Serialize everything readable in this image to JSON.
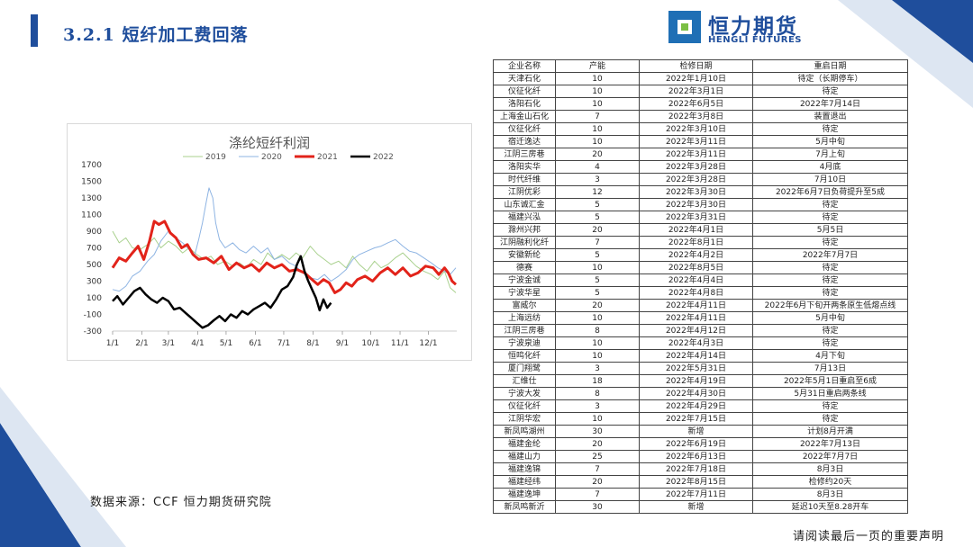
{
  "header": {
    "title": "3.2.1 短纤加工费回落"
  },
  "logo": {
    "name_cn": "恒力期货",
    "name_en": "HENGLI FUTURES"
  },
  "colors": {
    "brand_blue": "#1f4e9c",
    "logo_blue": "#1f6fb5",
    "logo_green": "#7bbf44",
    "deco_light": "#dde6f2"
  },
  "source": "数据来源：CCF 恒力期货研究院",
  "footer": "请阅读最后一页的重要声明",
  "chart_data": {
    "type": "line",
    "title": "涤纶短纤利润",
    "legend_position": "top",
    "grid": false,
    "x_tick_labels": [
      "1/1",
      "2/1",
      "3/1",
      "4/1",
      "5/1",
      "6/1",
      "7/1",
      "8/1",
      "9/1",
      "10/1",
      "11/1",
      "12/1"
    ],
    "y_ticks": [
      1700,
      1500,
      1300,
      1100,
      900,
      700,
      500,
      300,
      100,
      -100,
      -300
    ],
    "ylim": [
      -300,
      1700
    ],
    "series": [
      {
        "name": "2019",
        "color": "#a9d18e",
        "width": 1,
        "points": [
          [
            1,
            900
          ],
          [
            8,
            760
          ],
          [
            15,
            820
          ],
          [
            22,
            700
          ],
          [
            30,
            680
          ],
          [
            38,
            740
          ],
          [
            45,
            820
          ],
          [
            52,
            700
          ],
          [
            60,
            780
          ],
          [
            68,
            720
          ],
          [
            75,
            640
          ],
          [
            82,
            700
          ],
          [
            90,
            620
          ],
          [
            98,
            560
          ],
          [
            105,
            600
          ],
          [
            112,
            500
          ],
          [
            120,
            540
          ],
          [
            128,
            480
          ],
          [
            135,
            520
          ],
          [
            142,
            460
          ],
          [
            150,
            560
          ],
          [
            158,
            500
          ],
          [
            165,
            640
          ],
          [
            172,
            560
          ],
          [
            180,
            620
          ],
          [
            188,
            560
          ],
          [
            195,
            640
          ],
          [
            202,
            580
          ],
          [
            210,
            720
          ],
          [
            218,
            620
          ],
          [
            225,
            560
          ],
          [
            232,
            500
          ],
          [
            240,
            540
          ],
          [
            248,
            460
          ],
          [
            255,
            600
          ],
          [
            262,
            500
          ],
          [
            270,
            420
          ],
          [
            278,
            540
          ],
          [
            285,
            460
          ],
          [
            292,
            500
          ],
          [
            300,
            580
          ],
          [
            308,
            640
          ],
          [
            315,
            560
          ],
          [
            322,
            480
          ],
          [
            330,
            420
          ],
          [
            338,
            380
          ],
          [
            345,
            320
          ],
          [
            352,
            420
          ],
          [
            358,
            220
          ],
          [
            364,
            160
          ]
        ]
      },
      {
        "name": "2020",
        "color": "#8eb4e3",
        "width": 1,
        "points": [
          [
            1,
            200
          ],
          [
            8,
            180
          ],
          [
            15,
            240
          ],
          [
            22,
            360
          ],
          [
            30,
            420
          ],
          [
            38,
            540
          ],
          [
            45,
            620
          ],
          [
            52,
            780
          ],
          [
            60,
            900
          ],
          [
            68,
            820
          ],
          [
            75,
            760
          ],
          [
            82,
            680
          ],
          [
            88,
            620
          ],
          [
            92,
            800
          ],
          [
            96,
            1000
          ],
          [
            100,
            1250
          ],
          [
            103,
            1420
          ],
          [
            107,
            1300
          ],
          [
            110,
            1000
          ],
          [
            114,
            800
          ],
          [
            120,
            700
          ],
          [
            128,
            760
          ],
          [
            135,
            680
          ],
          [
            142,
            640
          ],
          [
            150,
            720
          ],
          [
            158,
            640
          ],
          [
            165,
            700
          ],
          [
            172,
            560
          ],
          [
            180,
            600
          ],
          [
            188,
            520
          ],
          [
            195,
            480
          ],
          [
            202,
            400
          ],
          [
            210,
            340
          ],
          [
            218,
            320
          ],
          [
            225,
            380
          ],
          [
            232,
            300
          ],
          [
            240,
            360
          ],
          [
            248,
            440
          ],
          [
            255,
            560
          ],
          [
            262,
            620
          ],
          [
            270,
            660
          ],
          [
            278,
            700
          ],
          [
            285,
            720
          ],
          [
            292,
            760
          ],
          [
            300,
            800
          ],
          [
            308,
            720
          ],
          [
            315,
            660
          ],
          [
            322,
            640
          ],
          [
            330,
            580
          ],
          [
            338,
            520
          ],
          [
            345,
            460
          ],
          [
            352,
            420
          ],
          [
            358,
            380
          ],
          [
            364,
            460
          ]
        ]
      },
      {
        "name": "2021",
        "color": "#e2231a",
        "width": 3,
        "points": [
          [
            1,
            460
          ],
          [
            8,
            580
          ],
          [
            15,
            540
          ],
          [
            22,
            640
          ],
          [
            28,
            720
          ],
          [
            34,
            560
          ],
          [
            40,
            780
          ],
          [
            45,
            1020
          ],
          [
            50,
            980
          ],
          [
            56,
            1020
          ],
          [
            62,
            880
          ],
          [
            68,
            820
          ],
          [
            74,
            700
          ],
          [
            80,
            740
          ],
          [
            86,
            620
          ],
          [
            92,
            560
          ],
          [
            100,
            580
          ],
          [
            108,
            520
          ],
          [
            116,
            600
          ],
          [
            124,
            440
          ],
          [
            132,
            520
          ],
          [
            140,
            460
          ],
          [
            148,
            500
          ],
          [
            156,
            420
          ],
          [
            164,
            520
          ],
          [
            172,
            460
          ],
          [
            180,
            500
          ],
          [
            188,
            420
          ],
          [
            196,
            440
          ],
          [
            204,
            400
          ],
          [
            212,
            320
          ],
          [
            218,
            260
          ],
          [
            224,
            320
          ],
          [
            230,
            280
          ],
          [
            236,
            160
          ],
          [
            242,
            200
          ],
          [
            248,
            280
          ],
          [
            254,
            240
          ],
          [
            260,
            320
          ],
          [
            268,
            360
          ],
          [
            276,
            300
          ],
          [
            284,
            400
          ],
          [
            292,
            460
          ],
          [
            300,
            380
          ],
          [
            308,
            460
          ],
          [
            316,
            360
          ],
          [
            324,
            400
          ],
          [
            332,
            480
          ],
          [
            340,
            460
          ],
          [
            346,
            380
          ],
          [
            352,
            460
          ],
          [
            356,
            400
          ],
          [
            360,
            300
          ],
          [
            364,
            260
          ]
        ]
      },
      {
        "name": "2022",
        "color": "#000000",
        "width": 2.5,
        "points": [
          [
            1,
            60
          ],
          [
            6,
            120
          ],
          [
            12,
            20
          ],
          [
            18,
            100
          ],
          [
            24,
            180
          ],
          [
            30,
            220
          ],
          [
            36,
            140
          ],
          [
            42,
            80
          ],
          [
            48,
            40
          ],
          [
            54,
            100
          ],
          [
            60,
            60
          ],
          [
            66,
            -40
          ],
          [
            72,
            -20
          ],
          [
            78,
            -80
          ],
          [
            84,
            -140
          ],
          [
            90,
            -200
          ],
          [
            96,
            -260
          ],
          [
            102,
            -230
          ],
          [
            108,
            -170
          ],
          [
            114,
            -120
          ],
          [
            120,
            -180
          ],
          [
            126,
            -100
          ],
          [
            132,
            -140
          ],
          [
            138,
            -60
          ],
          [
            144,
            -100
          ],
          [
            150,
            -40
          ],
          [
            156,
            0
          ],
          [
            162,
            40
          ],
          [
            168,
            -20
          ],
          [
            174,
            80
          ],
          [
            180,
            200
          ],
          [
            186,
            240
          ],
          [
            192,
            350
          ],
          [
            196,
            500
          ],
          [
            200,
            600
          ],
          [
            204,
            420
          ],
          [
            208,
            300
          ],
          [
            212,
            200
          ],
          [
            216,
            100
          ],
          [
            220,
            -50
          ],
          [
            224,
            80
          ],
          [
            228,
            -20
          ],
          [
            232,
            40
          ]
        ]
      }
    ]
  },
  "table": {
    "headers": [
      "企业名称",
      "产能",
      "检修日期",
      "重启日期"
    ],
    "rows": [
      [
        "天津石化",
        "10",
        "2022年1月10日",
        "待定（长期停车）"
      ],
      [
        "仪征化纤",
        "10",
        "2022年3月1日",
        "待定"
      ],
      [
        "洛阳石化",
        "10",
        "2022年6月5日",
        "2022年7月14日"
      ],
      [
        "上海金山石化",
        "7",
        "2022年3月8日",
        "装置退出"
      ],
      [
        "仪征化纤",
        "10",
        "2022年3月10日",
        "待定"
      ],
      [
        "宿迁逸达",
        "10",
        "2022年3月11日",
        "5月中旬"
      ],
      [
        "江阴三房巷",
        "20",
        "2022年3月11日",
        "7月上旬"
      ],
      [
        "洛阳实华",
        "4",
        "2022年3月28日",
        "4月底"
      ],
      [
        "时代纤维",
        "3",
        "2022年3月28日",
        "7月10日"
      ],
      [
        "江阴优彩",
        "12",
        "2022年3月30日",
        "2022年6月7日负荷提升至5成"
      ],
      [
        "山东诚汇金",
        "5",
        "2022年3月30日",
        "待定"
      ],
      [
        "福建兴泓",
        "5",
        "2022年3月31日",
        "待定"
      ],
      [
        "滁州兴邦",
        "20",
        "2022年4月1日",
        "5月5日"
      ],
      [
        "江阴融利化纤",
        "7",
        "2022年8月1日",
        "待定"
      ],
      [
        "安徽新纶",
        "5",
        "2022年4月2日",
        "2022年7月7日"
      ],
      [
        "德赛",
        "10",
        "2022年8月5日",
        "待定"
      ],
      [
        "宁波金诚",
        "5",
        "2022年4月4日",
        "待定"
      ],
      [
        "宁波华星",
        "5",
        "2022年4月8日",
        "待定"
      ],
      [
        "富威尔",
        "20",
        "2022年4月11日",
        "2022年6月下旬开两条原生低熔点线"
      ],
      [
        "上海远纺",
        "10",
        "2022年4月11日",
        "5月中旬"
      ],
      [
        "江阴三房巷",
        "8",
        "2022年4月12日",
        "待定"
      ],
      [
        "宁波泉迪",
        "10",
        "2022年4月3日",
        "待定"
      ],
      [
        "恒鸣化纤",
        "10",
        "2022年4月14日",
        "4月下旬"
      ],
      [
        "厦门翔鹭",
        "3",
        "2022年5月31日",
        "7月13日"
      ],
      [
        "汇维仕",
        "18",
        "2022年4月19日",
        "2022年5月1日重启至6成"
      ],
      [
        "宁波大发",
        "8",
        "2022年4月30日",
        "5月31日重启两条线"
      ],
      [
        "仪征化纤",
        "3",
        "2022年4月29日",
        "待定"
      ],
      [
        "江阴华宏",
        "10",
        "2022年7月15日",
        "待定"
      ],
      [
        "新凤鸣湖州",
        "30",
        "新增",
        "计划8月开满"
      ],
      [
        "福建金纶",
        "20",
        "2022年6月19日",
        "2022年7月13日"
      ],
      [
        "福建山力",
        "25",
        "2022年6月13日",
        "2022年7月7日"
      ],
      [
        "福建逸锦",
        "7",
        "2022年7月18日",
        "8月3日"
      ],
      [
        "福建经纬",
        "20",
        "2022年8月15日",
        "检修约20天"
      ],
      [
        "福建逸坤",
        "7",
        "2022年7月11日",
        "8月3日"
      ],
      [
        "新凤鸣新沂",
        "30",
        "新增",
        "延迟10天至8.28开车"
      ]
    ]
  }
}
